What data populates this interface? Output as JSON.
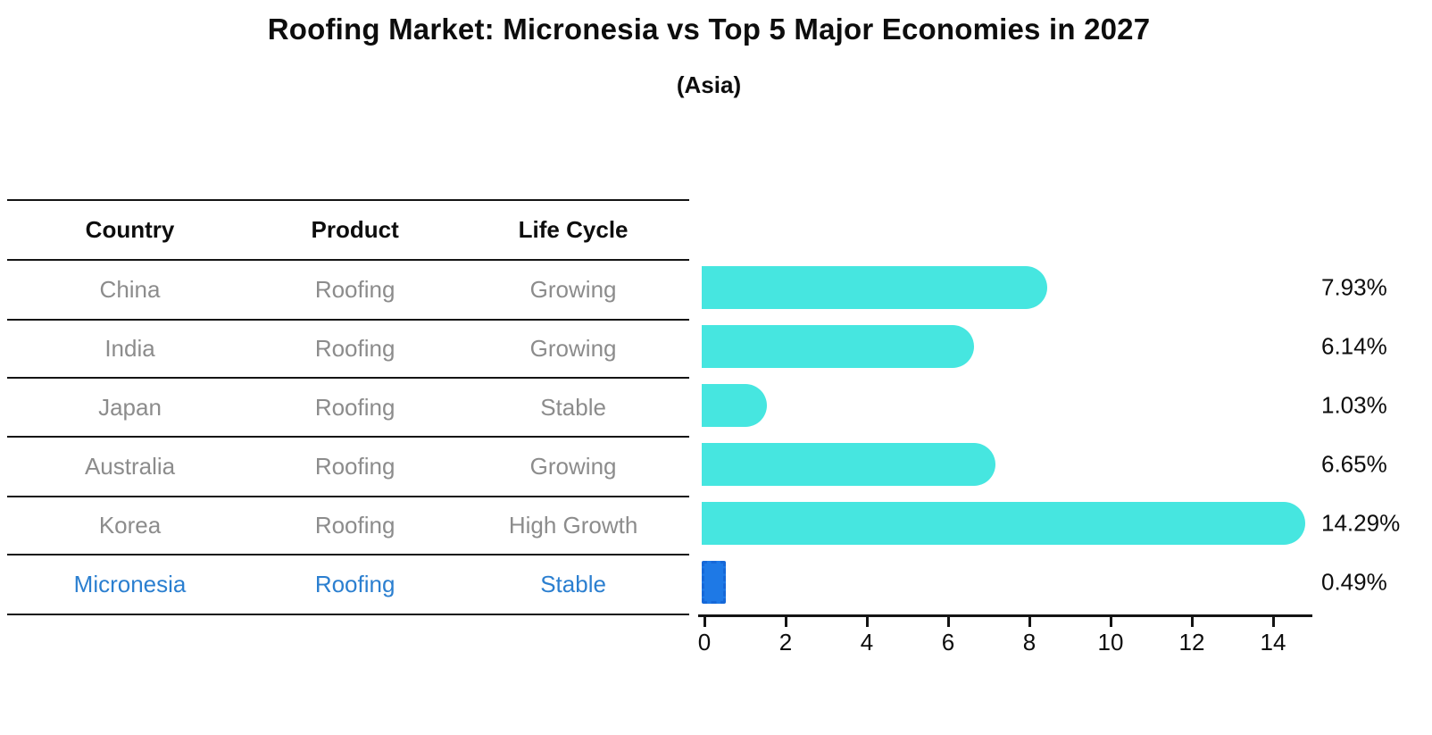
{
  "title": "Roofing Market: Micronesia vs Top 5 Major Economies in 2027",
  "subtitle": "(Asia)",
  "table": {
    "headers": [
      "Country",
      "Product",
      "Life Cycle"
    ],
    "rows": [
      {
        "country": "China",
        "product": "Roofing",
        "life_cycle": "Growing",
        "highlight": false
      },
      {
        "country": "India",
        "product": "Roofing",
        "life_cycle": "Growing",
        "highlight": false
      },
      {
        "country": "Japan",
        "product": "Roofing",
        "life_cycle": "Stable",
        "highlight": false
      },
      {
        "country": "Australia",
        "product": "Roofing",
        "life_cycle": "Growing",
        "highlight": false
      },
      {
        "country": "Korea",
        "product": "Roofing",
        "life_cycle": "High Growth",
        "highlight": false
      },
      {
        "country": "Micronesia",
        "product": "Roofing",
        "life_cycle": "Stable",
        "highlight": true
      }
    ]
  },
  "chart_data": {
    "type": "bar",
    "orientation": "horizontal",
    "title": "Roofing Market: Micronesia vs Top 5 Major Economies in 2027",
    "subtitle": "(Asia)",
    "categories": [
      "China",
      "India",
      "Japan",
      "Australia",
      "Korea",
      "Micronesia"
    ],
    "values": [
      7.93,
      6.14,
      1.03,
      6.65,
      14.29,
      0.49
    ],
    "value_labels": [
      "7.93%",
      "6.14%",
      "1.03%",
      "6.65%",
      "14.29%",
      "0.49%"
    ],
    "x_ticks": [
      0,
      2,
      4,
      6,
      8,
      10,
      12,
      14
    ],
    "xlim": [
      0,
      15
    ],
    "xlabel": "",
    "ylabel": "",
    "grid": false,
    "legend": false,
    "highlight_index": 5
  },
  "colors": {
    "bar": "#46e6e0",
    "highlight_bar": "#1e79e6",
    "highlight_border": "#1668d8",
    "highlight_text": "#2b7fd0",
    "axis": "#141414",
    "text": "#0d0d0d",
    "muted_text": "#8c8c8c"
  }
}
